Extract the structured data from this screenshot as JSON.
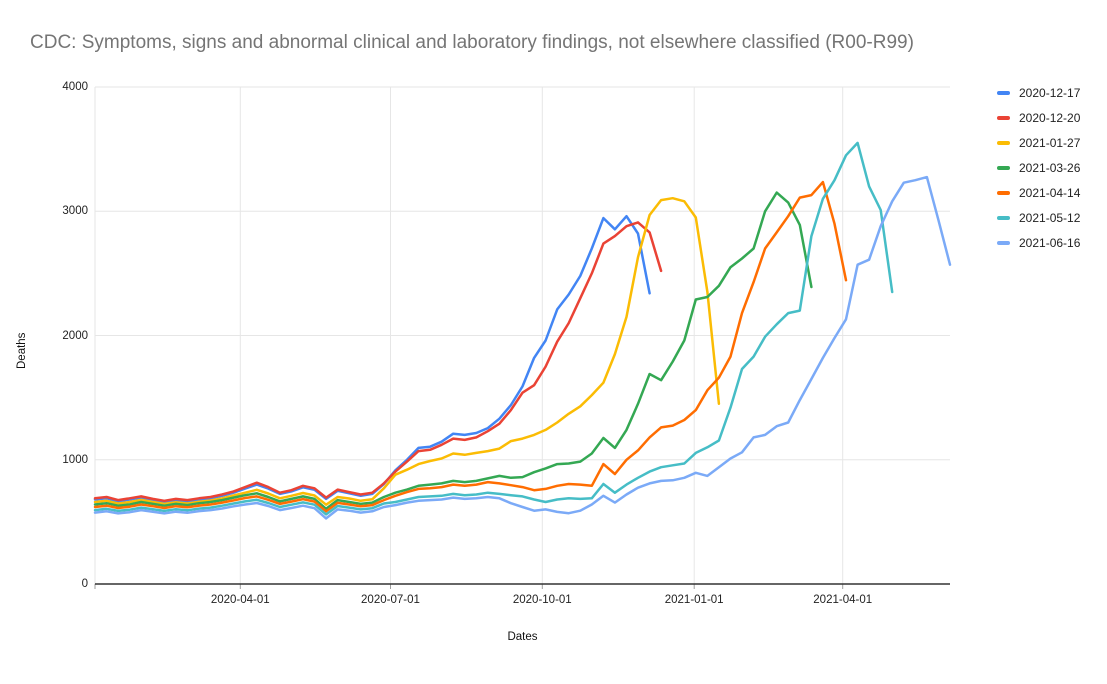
{
  "title": "CDC: Symptoms, signs and abnormal clinical and laboratory findings, not elsewhere classified (R00-R99)",
  "chart_data": {
    "type": "line",
    "title": "CDC: Symptoms, signs and abnormal clinical and laboratory findings, not elsewhere classified (R00-R99)",
    "xlabel": "Dates",
    "ylabel": "Deaths",
    "ylim": [
      0,
      4000
    ],
    "y_ticks": [
      0,
      1000,
      2000,
      3000,
      4000
    ],
    "x_ticks": [
      "2020-04-01",
      "2020-07-01",
      "2020-10-01",
      "2021-01-01",
      "2021-04-01"
    ],
    "x_start": "2020-01-04",
    "x_end": "2021-06-05",
    "point_interval_days": 7,
    "grid": true,
    "legend_position": "right",
    "grid_color": "#e6e6e6",
    "axis_color": "#333333",
    "tick_color": "#9e9e9e",
    "title_color": "#757575",
    "series": [
      {
        "name": "2020-12-17",
        "color": "#4285F4",
        "values": [
          680,
          690,
          665,
          680,
          695,
          675,
          660,
          675,
          665,
          680,
          690,
          710,
          735,
          768,
          800,
          768,
          725,
          745,
          778,
          758,
          685,
          750,
          730,
          710,
          725,
          805,
          915,
          1000,
          1095,
          1105,
          1145,
          1210,
          1200,
          1215,
          1255,
          1330,
          1440,
          1590,
          1820,
          1960,
          2210,
          2330,
          2480,
          2700,
          2945,
          2855,
          2960,
          2820,
          2340
        ]
      },
      {
        "name": "2020-12-20",
        "color": "#EA4335",
        "values": [
          690,
          700,
          675,
          690,
          705,
          685,
          670,
          685,
          675,
          690,
          700,
          720,
          745,
          780,
          815,
          780,
          735,
          755,
          790,
          770,
          695,
          760,
          740,
          720,
          735,
          810,
          905,
          985,
          1070,
          1080,
          1120,
          1170,
          1160,
          1180,
          1230,
          1290,
          1400,
          1540,
          1600,
          1750,
          1950,
          2100,
          2300,
          2500,
          2740,
          2800,
          2880,
          2910,
          2830,
          2520
        ]
      },
      {
        "name": "2021-01-27",
        "color": "#FBBC04",
        "values": [
          660,
          670,
          648,
          660,
          678,
          660,
          645,
          658,
          648,
          662,
          672,
          690,
          712,
          735,
          758,
          728,
          690,
          710,
          732,
          712,
          638,
          700,
          688,
          670,
          682,
          770,
          880,
          920,
          965,
          990,
          1010,
          1050,
          1040,
          1055,
          1070,
          1090,
          1150,
          1170,
          1200,
          1240,
          1300,
          1370,
          1430,
          1520,
          1620,
          1850,
          2150,
          2630,
          2970,
          3090,
          3105,
          3080,
          2950,
          2350,
          1450
        ]
      },
      {
        "name": "2021-03-26",
        "color": "#34A853",
        "values": [
          640,
          650,
          630,
          640,
          660,
          645,
          630,
          645,
          635,
          650,
          660,
          675,
          695,
          715,
          730,
          700,
          665,
          685,
          705,
          685,
          605,
          675,
          660,
          645,
          655,
          700,
          735,
          760,
          790,
          800,
          810,
          830,
          820,
          830,
          850,
          870,
          855,
          860,
          900,
          930,
          965,
          970,
          985,
          1050,
          1175,
          1095,
          1240,
          1450,
          1690,
          1640,
          1790,
          1960,
          2290,
          2310,
          2400,
          2550,
          2620,
          2700,
          3000,
          3150,
          3070,
          2890,
          2390
        ]
      },
      {
        "name": "2021-04-14",
        "color": "#FF6D01",
        "values": [
          620,
          630,
          612,
          622,
          640,
          626,
          612,
          626,
          617,
          631,
          640,
          655,
          673,
          692,
          705,
          678,
          645,
          663,
          683,
          663,
          585,
          653,
          640,
          625,
          635,
          675,
          710,
          740,
          765,
          770,
          780,
          800,
          790,
          800,
          820,
          810,
          795,
          780,
          755,
          765,
          790,
          805,
          800,
          790,
          965,
          885,
          1000,
          1075,
          1180,
          1260,
          1275,
          1320,
          1400,
          1560,
          1660,
          1830,
          2180,
          2430,
          2700,
          2830,
          2960,
          3110,
          3130,
          3235,
          2900,
          2445
        ]
      },
      {
        "name": "2021-05-12",
        "color": "#46BDC6",
        "values": [
          595,
          605,
          588,
          598,
          615,
          602,
          588,
          602,
          593,
          607,
          615,
          630,
          648,
          665,
          678,
          652,
          620,
          638,
          657,
          638,
          560,
          628,
          615,
          600,
          610,
          648,
          660,
          680,
          700,
          705,
          710,
          725,
          715,
          720,
          735,
          725,
          715,
          705,
          680,
          660,
          680,
          690,
          685,
          690,
          805,
          735,
          800,
          855,
          905,
          940,
          955,
          970,
          1055,
          1100,
          1155,
          1420,
          1730,
          1830,
          1990,
          2090,
          2180,
          2200,
          2800,
          3100,
          3250,
          3450,
          3550,
          3200,
          3010,
          2350
        ]
      },
      {
        "name": "2021-06-16",
        "color": "#7BAAF7",
        "values": [
          575,
          585,
          568,
          578,
          595,
          582,
          568,
          582,
          573,
          587,
          595,
          608,
          625,
          640,
          652,
          628,
          595,
          612,
          630,
          610,
          528,
          600,
          590,
          575,
          585,
          620,
          635,
          655,
          670,
          675,
          680,
          695,
          685,
          690,
          700,
          690,
          650,
          620,
          590,
          600,
          580,
          570,
          590,
          640,
          710,
          655,
          720,
          775,
          810,
          830,
          835,
          855,
          895,
          870,
          940,
          1010,
          1060,
          1180,
          1200,
          1270,
          1300,
          1480,
          1650,
          1820,
          1980,
          2130,
          2570,
          2610,
          2880,
          3080,
          3230,
          3250,
          3275,
          2930,
          2570
        ]
      }
    ]
  },
  "axes": {
    "x_label": "Dates",
    "y_label": "Deaths"
  }
}
